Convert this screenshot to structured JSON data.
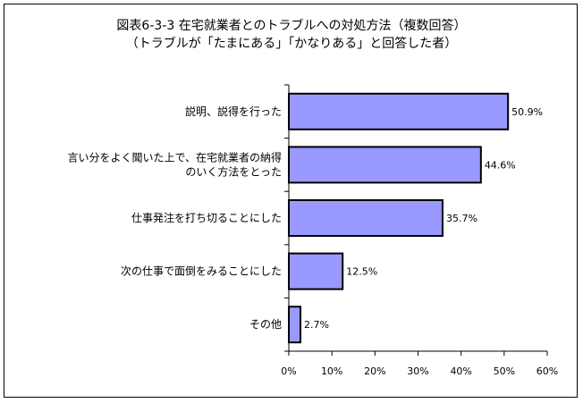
{
  "chart_data": {
    "type": "bar",
    "orientation": "horizontal",
    "title": "図表6-3-3  在宅就業者とのトラブルへの対処方法（複数回答）",
    "subtitle": "（トラブルが「たまにある」「かなりある」と回答した者）",
    "categories": [
      [
        "説明、説得を行った"
      ],
      [
        "言い分をよく聞いた上で、在宅就業者の納得",
        "のいく方法をとった"
      ],
      [
        "仕事発注を打ち切ることにした"
      ],
      [
        "次の仕事で面倒をみることにした"
      ],
      [
        "その他"
      ]
    ],
    "values": [
      50.9,
      44.6,
      35.7,
      12.5,
      2.7
    ],
    "value_labels": [
      "50.9%",
      "44.6%",
      "35.7%",
      "12.5%",
      "2.7%"
    ],
    "xlim": [
      0,
      60
    ],
    "x_ticks": [
      "0%",
      "10%",
      "20%",
      "30%",
      "40%",
      "50%",
      "60%"
    ],
    "grid": false,
    "legend": "none",
    "bar_color": "#9999ff",
    "bar_edge_color": "#000000"
  }
}
